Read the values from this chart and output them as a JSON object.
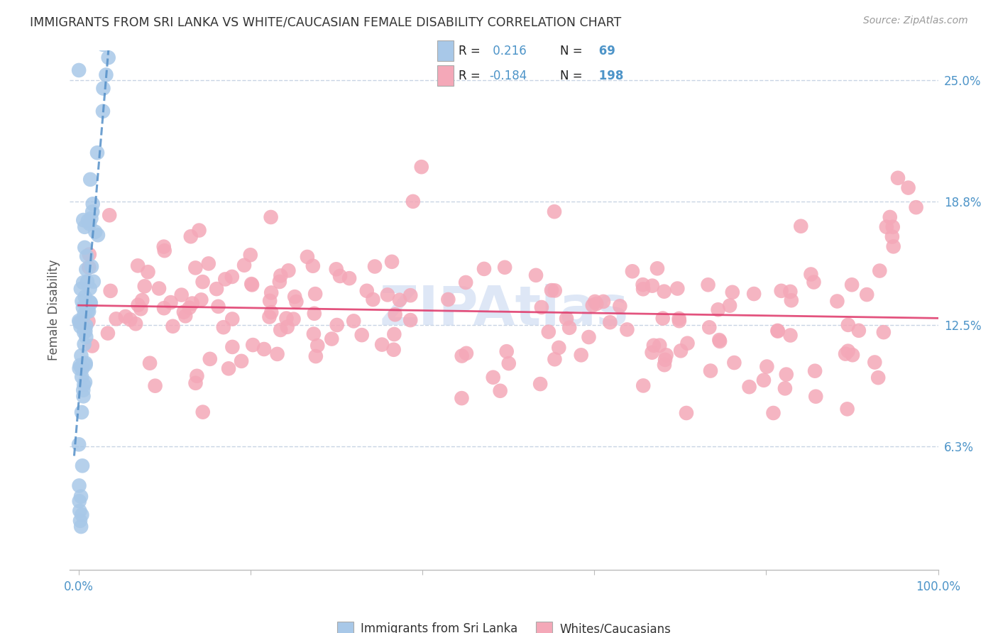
{
  "title": "IMMIGRANTS FROM SRI LANKA VS WHITE/CAUCASIAN FEMALE DISABILITY CORRELATION CHART",
  "source": "Source: ZipAtlas.com",
  "ylabel": "Female Disability",
  "xlim": [
    -0.01,
    1.0
  ],
  "ylim": [
    0.0,
    0.265
  ],
  "yticks": [
    0.063,
    0.125,
    0.188,
    0.25
  ],
  "ytick_labels": [
    "6.3%",
    "12.5%",
    "18.8%",
    "25.0%"
  ],
  "xticks": [
    0.0,
    0.2,
    0.4,
    0.6,
    0.8,
    1.0
  ],
  "xtick_labels": [
    "0.0%",
    "",
    "",
    "",
    "",
    "100.0%"
  ],
  "blue_R": 0.216,
  "blue_N": 69,
  "pink_R": -0.184,
  "pink_N": 198,
  "blue_color": "#a8c8e8",
  "pink_color": "#f4a8b8",
  "blue_line_color": "#5590c8",
  "pink_line_color": "#e04070",
  "bg_color": "#ffffff",
  "grid_color": "#c8d4e4",
  "title_color": "#333333",
  "axis_label_color": "#4d94c8",
  "watermark_text": "ZIPAtlas",
  "watermark_color": "#c8d8f0",
  "legend_label_blue": "Immigrants from Sri Lanka",
  "legend_label_pink": "Whites/Caucasians"
}
